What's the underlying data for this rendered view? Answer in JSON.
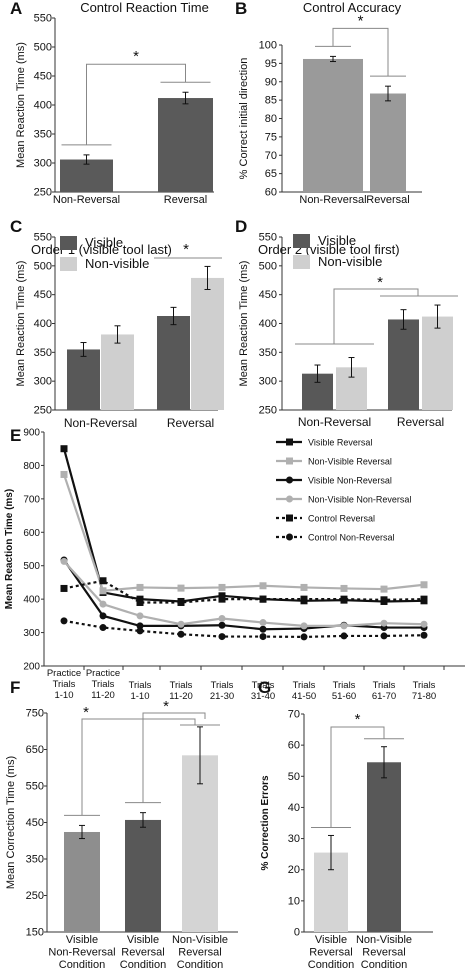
{
  "chart_data": [
    {
      "panel": "A",
      "type": "bar",
      "title": "Control Reaction Time",
      "ylabel": "Mean Reaction Time (ms)",
      "ylim": [
        250,
        550
      ],
      "yticks": [
        "250",
        "300",
        "350",
        "400",
        "450",
        "500",
        "550"
      ],
      "categories": [
        "Non-Reversal",
        "Reversal"
      ],
      "values": [
        306,
        412
      ],
      "errors": [
        8,
        10
      ],
      "colors": [
        "#5a5a5a",
        "#5a5a5a"
      ],
      "sig": "*"
    },
    {
      "panel": "B",
      "type": "bar",
      "title": "Control Accuracy",
      "ylabel": "% Correct initial direction",
      "ylim": [
        60,
        100
      ],
      "yticks": [
        "60",
        "65",
        "70",
        "75",
        "80",
        "85",
        "90",
        "95",
        "100"
      ],
      "categories": [
        "Non-Reversal",
        "Reversal"
      ],
      "values": [
        96.2,
        86.8
      ],
      "errors": [
        0.7,
        2.0
      ],
      "colors": [
        "#9a9a9a",
        "#9a9a9a"
      ],
      "sig": "*"
    },
    {
      "panel": "C",
      "type": "bar",
      "title": "Order 1 (visible tool last)",
      "ylabel": "Mean Reaction Time (ms)",
      "ylim": [
        250,
        550
      ],
      "yticks": [
        "250",
        "300",
        "350",
        "400",
        "450",
        "500",
        "550"
      ],
      "categories": [
        "Non-Reversal",
        "Reversal"
      ],
      "series": [
        {
          "name": "Visible",
          "values": [
            355,
            413
          ],
          "errors": [
            12,
            15
          ],
          "color": "#585858"
        },
        {
          "name": "Non-visible",
          "values": [
            381,
            479
          ],
          "errors": [
            15,
            20
          ],
          "color": "#cfcfcf"
        }
      ],
      "sig": "*"
    },
    {
      "panel": "D",
      "type": "bar",
      "title": "Order 2 (visible tool first)",
      "ylabel": "Mean Reaction Time (ms)",
      "ylim": [
        250,
        550
      ],
      "yticks": [
        "250",
        "300",
        "350",
        "400",
        "450",
        "500",
        "550"
      ],
      "categories": [
        "Non-Reversal",
        "Reversal"
      ],
      "series": [
        {
          "name": "Visible",
          "values": [
            313,
            407
          ],
          "errors": [
            15,
            17
          ],
          "color": "#585858"
        },
        {
          "name": "Non-visible",
          "values": [
            324,
            412
          ],
          "errors": [
            17,
            20
          ],
          "color": "#cfcfcf"
        }
      ],
      "sig": "*"
    },
    {
      "panel": "E",
      "type": "line",
      "ylabel": "Mean Reaction Time (ms)",
      "ylim": [
        200,
        900
      ],
      "yticks": [
        "200",
        "300",
        "400",
        "500",
        "600",
        "700",
        "800",
        "900"
      ],
      "categories": [
        [
          "Practice",
          "Trials",
          "1-10"
        ],
        [
          "Practice",
          "Trials",
          "11-20"
        ],
        [
          "Trials",
          "1-10"
        ],
        [
          "Trials",
          "11-20"
        ],
        [
          "Trials",
          "21-30"
        ],
        [
          "Trials",
          "31-40"
        ],
        [
          "Trials",
          "41-50"
        ],
        [
          "Trials",
          "51-60"
        ],
        [
          "Trials",
          "61-70"
        ],
        [
          "Trials",
          "71-80"
        ]
      ],
      "series": [
        {
          "name": "Visible Reversal",
          "values": [
            850,
            420,
            400,
            393,
            410,
            400,
            395,
            397,
            393,
            395
          ],
          "color": "#111111",
          "dash": false,
          "marker": "square"
        },
        {
          "name": "Non-Visible Reversal",
          "values": [
            773,
            425,
            435,
            433,
            435,
            440,
            435,
            432,
            430,
            443
          ],
          "color": "#b0b0b0",
          "dash": false,
          "marker": "square"
        },
        {
          "name": "Visible Non-Reversal",
          "values": [
            517,
            350,
            320,
            320,
            322,
            310,
            312,
            322,
            315,
            315
          ],
          "color": "#111111",
          "dash": false,
          "marker": "circle"
        },
        {
          "name": "Non-Visible Non-Reversal",
          "values": [
            513,
            385,
            350,
            325,
            342,
            330,
            320,
            320,
            328,
            325
          ],
          "color": "#b0b0b0",
          "dash": false,
          "marker": "circle"
        },
        {
          "name": "Control Reversal",
          "values": [
            432,
            455,
            390,
            390,
            400,
            400,
            400,
            400,
            398,
            400
          ],
          "color": "#111111",
          "dash": true,
          "marker": "square"
        },
        {
          "name": "Control Non-Reversal",
          "values": [
            335,
            315,
            305,
            295,
            288,
            288,
            287,
            290,
            290,
            292
          ],
          "color": "#111111",
          "dash": true,
          "marker": "circle"
        }
      ]
    },
    {
      "panel": "F",
      "type": "bar",
      "ylabel": "Mean Correction Time (ms)",
      "ylim": [
        150,
        750
      ],
      "yticks": [
        "150",
        "250",
        "350",
        "450",
        "550",
        "650",
        "750"
      ],
      "categories": [
        [
          "Visible",
          "Non-Reversal",
          "Condition"
        ],
        [
          "Visible",
          "Reversal",
          "Condition"
        ],
        [
          "Non-Visible",
          "Reversal",
          "Condition"
        ]
      ],
      "values": [
        424,
        457,
        634
      ],
      "errors": [
        18,
        20,
        78
      ],
      "colors": [
        "#8e8e8e",
        "#585858",
        "#d4d4d4"
      ],
      "sig": [
        "*",
        "*"
      ]
    },
    {
      "panel": "G",
      "type": "bar",
      "ylabel": "% Correction Errors",
      "ylim": [
        0,
        70
      ],
      "yticks": [
        "0",
        "10",
        "20",
        "30",
        "40",
        "50",
        "60",
        "70"
      ],
      "categories": [
        [
          "Visible",
          "Reversal",
          "Condition"
        ],
        [
          "Non-Visible",
          "Reversal",
          "Condition"
        ]
      ],
      "values": [
        25.5,
        54.5
      ],
      "errors": [
        5.5,
        5.0
      ],
      "colors": [
        "#d4d4d4",
        "#585858"
      ],
      "sig": "*"
    }
  ]
}
